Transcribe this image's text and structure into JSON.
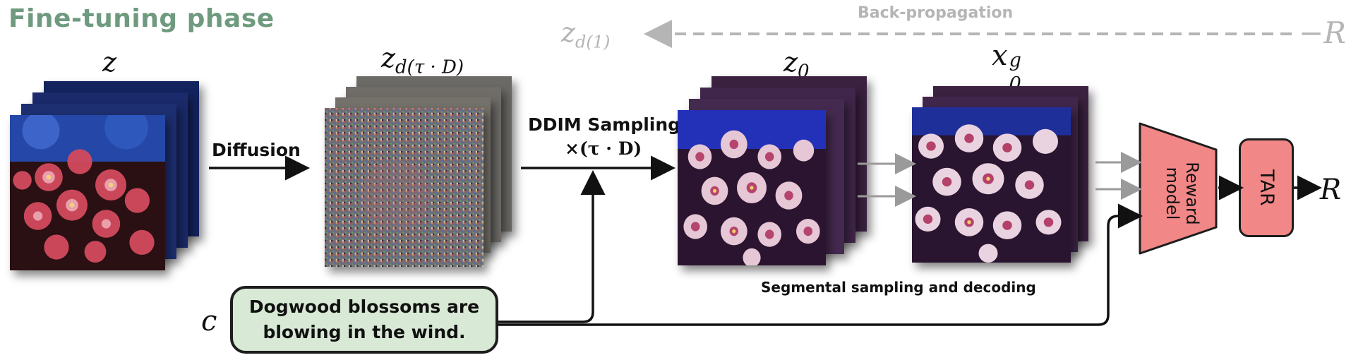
{
  "header": {
    "phase_title": "Fine-tuning phase"
  },
  "labels": {
    "z": "z",
    "z_noised_base": "z",
    "z_noised_sub": "d(τ · D)",
    "z0_base": "z",
    "z0_sub": "0",
    "x0_base": "x",
    "x0_sub": "0",
    "x0_sup": "g",
    "zd1_base": "z",
    "zd1_sub": "d(1)",
    "neg_r": "−R",
    "c": "c",
    "r_out": "R"
  },
  "steps": {
    "diffusion": "Diffusion",
    "ddim_line1": "DDIM Sampling",
    "ddim_line2": "×(τ · D)",
    "segmental": "Segmental sampling and decoding",
    "backprop": "Back-propagation"
  },
  "prompt": {
    "text": "Dogwood blossoms are\nblowing in the wind."
  },
  "modules": {
    "reward": "Reward\nmodel",
    "tar": "TAR"
  },
  "colors": {
    "title_green": "#6f9a7f",
    "prompt_fill": "#d8e9d5",
    "module_fill": "#f28787",
    "backprop_gray": "#b5b5b5"
  }
}
